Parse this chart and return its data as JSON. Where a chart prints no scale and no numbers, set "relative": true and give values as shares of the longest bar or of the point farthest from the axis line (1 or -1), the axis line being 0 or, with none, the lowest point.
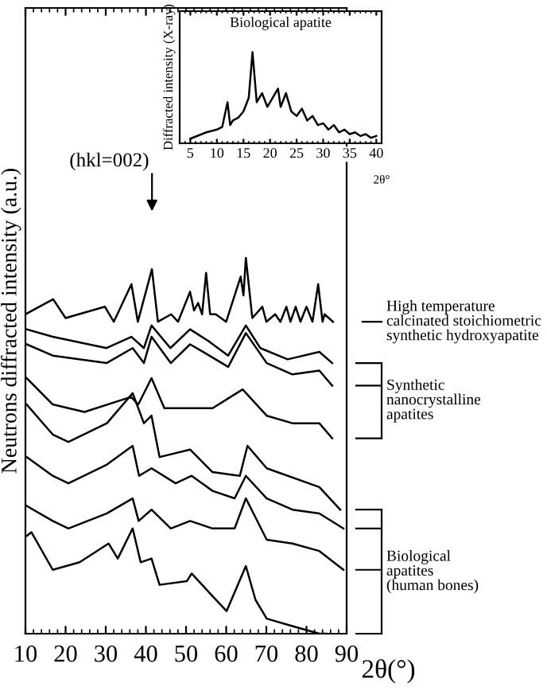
{
  "chart_data": [
    {
      "type": "line",
      "ylabel": "Neutrons diffracted intensity (a.u.)",
      "xlabel": "2θ(°)",
      "relative": true,
      "tick_labels": "x",
      "grid": false,
      "legend": false,
      "marker": "none",
      "line_style": "solid",
      "xlim": [
        10,
        90
      ],
      "xticks": [
        10,
        20,
        30,
        40,
        50,
        60,
        70,
        80,
        90
      ],
      "annotations": [
        "(hkl=002)",
        "High temperature\ncalcinated stoichiometric\nsynthetic hydroxyapatite",
        "Synthetic\nnanocrystalline\napatites",
        "Biological\napatites\n(human bones)"
      ],
      "series": [
        {
          "color": "#000000",
          "x": [
            10,
            16.9,
            20,
            29.8,
            32,
            36.4,
            38,
            41.5,
            43,
            46.3,
            48,
            51.0,
            52,
            53,
            54,
            55.0,
            56,
            57.4,
            60,
            63.6,
            64.3,
            64.9,
            66.5,
            69,
            70,
            72.2,
            73.5,
            75,
            76,
            77.3,
            78.5,
            80,
            81.5,
            82.9,
            84,
            84.5,
            86.6
          ],
          "values": [
            0.85,
            0.89,
            0.84,
            0.87,
            0.83,
            0.93,
            0.83,
            0.97,
            0.83,
            0.85,
            0.83,
            0.91,
            0.86,
            0.88,
            0.85,
            0.96,
            0.85,
            0.85,
            0.83,
            0.95,
            0.9,
            1.0,
            0.84,
            0.87,
            0.83,
            0.85,
            0.83,
            0.87,
            0.83,
            0.87,
            0.83,
            0.87,
            0.83,
            0.93,
            0.83,
            0.85,
            0.83
          ]
        },
        {
          "color": "#000000",
          "x": [
            10.3,
            16.8,
            30.2,
            36.4,
            39.5,
            41.4,
            46.1,
            51.0,
            55.4,
            60.5,
            64.9,
            68.5,
            75.3,
            83.2,
            86.4
          ],
          "values": [
            0.81,
            0.79,
            0.76,
            0.79,
            0.76,
            0.82,
            0.76,
            0.81,
            0.78,
            0.74,
            0.82,
            0.76,
            0.73,
            0.75,
            0.72
          ]
        },
        {
          "color": "#000000",
          "x": [
            10.3,
            16.8,
            30.2,
            36.7,
            39.5,
            41.4,
            46.2,
            51.0,
            54.2,
            60.5,
            64.9,
            70.1,
            76.5,
            83.2,
            86.4
          ],
          "values": [
            0.77,
            0.74,
            0.72,
            0.76,
            0.72,
            0.79,
            0.72,
            0.77,
            0.75,
            0.71,
            0.8,
            0.72,
            0.69,
            0.7,
            0.66
          ]
        },
        {
          "color": "#000000",
          "x": [
            10.3,
            16.8,
            24.7,
            36.3,
            38.1,
            41.4,
            44.6,
            56.6,
            64.1,
            70.1,
            76.5,
            83.2,
            86.4
          ],
          "values": [
            0.68,
            0.61,
            0.59,
            0.63,
            0.61,
            0.68,
            0.6,
            0.6,
            0.65,
            0.58,
            0.56,
            0.56,
            0.52
          ]
        },
        {
          "color": "#000000",
          "x": [
            10.3,
            16.8,
            20.7,
            30.3,
            36.7,
            39.5,
            41.4,
            43.4,
            51.0,
            56.6,
            63.4,
            65.3,
            70.1,
            83.2,
            88.4
          ],
          "values": [
            0.61,
            0.53,
            0.51,
            0.56,
            0.64,
            0.56,
            0.58,
            0.47,
            0.49,
            0.43,
            0.42,
            0.5,
            0.44,
            0.39,
            0.33
          ]
        },
        {
          "color": "#000000",
          "x": [
            10.3,
            16.8,
            20.7,
            30.3,
            36.7,
            38.3,
            41.4,
            47.4,
            51.4,
            56.6,
            62.1,
            64.9,
            70.1,
            76.5,
            83.2,
            89.2
          ],
          "values": [
            0.47,
            0.42,
            0.4,
            0.45,
            0.5,
            0.42,
            0.44,
            0.4,
            0.42,
            0.38,
            0.36,
            0.42,
            0.36,
            0.33,
            0.32,
            0.28
          ]
        },
        {
          "color": "#000000",
          "x": [
            10.3,
            16.8,
            20.7,
            30.3,
            36.7,
            38.2,
            41.4,
            46.2,
            51.0,
            56.6,
            62.1,
            64.9,
            70.1,
            76.5,
            83.2,
            89.2
          ],
          "values": [
            0.34,
            0.3,
            0.28,
            0.32,
            0.36,
            0.3,
            0.33,
            0.28,
            0.3,
            0.28,
            0.28,
            0.36,
            0.25,
            0.24,
            0.22,
            0.17
          ]
        },
        {
          "color": "#000000",
          "x": [
            10.3,
            11.5,
            16.8,
            23.5,
            30.7,
            33,
            36.7,
            38.7,
            41.4,
            43.4,
            50.2,
            51.4,
            56.6,
            60.1,
            64.9,
            67.3,
            70.1,
            76.5,
            83.2,
            85
          ],
          "values": [
            0.26,
            0.27,
            0.17,
            0.19,
            0.24,
            0.2,
            0.28,
            0.19,
            0.2,
            0.13,
            0.14,
            0.16,
            0.1,
            0.06,
            0.18,
            0.09,
            0.04,
            0.02,
            0.0,
            0.0
          ]
        }
      ]
    },
    {
      "type": "line",
      "title": "Biological apatite",
      "ylabel": "Diffracted intensity (X-ray)",
      "xlabel": "2θ°",
      "relative": true,
      "tick_labels": "x",
      "grid": false,
      "legend": false,
      "marker": "none",
      "line_style": "solid",
      "xlim": [
        3,
        41
      ],
      "xticks": [
        5,
        10,
        15,
        20,
        25,
        30,
        35,
        40
      ],
      "series": [
        {
          "color": "#000000",
          "x": [
            5,
            8,
            10,
            11,
            12,
            12.5,
            13,
            14,
            15,
            16,
            16.7,
            17.5,
            18.5,
            19.5,
            20.5,
            21.5,
            22,
            23,
            24,
            25,
            26,
            27,
            28,
            29,
            30,
            31,
            32,
            33,
            34,
            35,
            36,
            37,
            38,
            39,
            40
          ],
          "values": [
            0.05,
            0.12,
            0.15,
            0.18,
            0.45,
            0.2,
            0.25,
            0.28,
            0.35,
            0.5,
            1.0,
            0.45,
            0.55,
            0.4,
            0.5,
            0.6,
            0.4,
            0.55,
            0.35,
            0.3,
            0.38,
            0.25,
            0.3,
            0.2,
            0.22,
            0.15,
            0.2,
            0.12,
            0.15,
            0.1,
            0.12,
            0.08,
            0.1,
            0.06,
            0.08
          ]
        }
      ]
    }
  ]
}
